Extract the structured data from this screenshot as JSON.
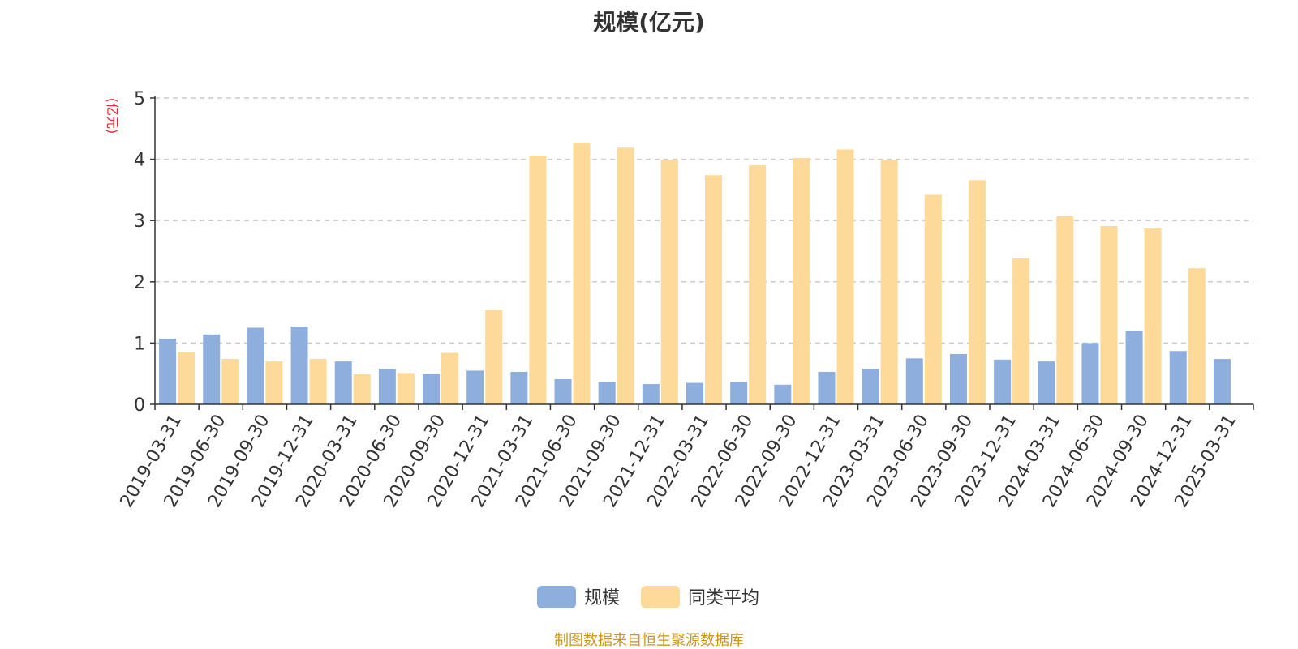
{
  "chart_data": {
    "type": "bar",
    "title": "规模(亿元)",
    "ylabel": "(亿元)",
    "xlabel": "",
    "ylim": [
      0,
      5
    ],
    "yticks": [
      "0",
      "1",
      "2",
      "3",
      "4",
      "5"
    ],
    "grid": true,
    "legend_position": "bottom",
    "categories": [
      "2019-03-31",
      "2019-06-30",
      "2019-09-30",
      "2019-12-31",
      "2020-03-31",
      "2020-06-30",
      "2020-09-30",
      "2020-12-31",
      "2021-03-31",
      "2021-06-30",
      "2021-09-30",
      "2021-12-31",
      "2022-03-31",
      "2022-06-30",
      "2022-09-30",
      "2022-12-31",
      "2023-03-31",
      "2023-06-30",
      "2023-09-30",
      "2023-12-31",
      "2024-03-31",
      "2024-06-30",
      "2024-09-30",
      "2024-12-31",
      "2025-03-31"
    ],
    "series": [
      {
        "name": "规模",
        "color": "#8eaedd",
        "values": [
          1.07,
          1.14,
          1.25,
          1.27,
          0.7,
          0.58,
          0.5,
          0.55,
          0.53,
          0.41,
          0.36,
          0.33,
          0.35,
          0.36,
          0.32,
          0.53,
          0.58,
          0.75,
          0.82,
          0.73,
          0.7,
          1.0,
          1.2,
          0.87,
          0.74
        ]
      },
      {
        "name": "同类平均",
        "color": "#fdd99a",
        "values": [
          0.85,
          0.74,
          0.7,
          0.74,
          0.49,
          0.51,
          0.84,
          1.54,
          4.06,
          4.27,
          4.19,
          3.99,
          3.74,
          3.9,
          4.02,
          4.16,
          3.99,
          3.42,
          3.66,
          2.38,
          3.07,
          2.91,
          2.87,
          2.22,
          null
        ]
      }
    ]
  },
  "source_note": "制图数据来自恒生聚源数据库",
  "colors": {
    "axis": "#333333",
    "grid": "#cccccc",
    "ylabel": "#e8262d",
    "source": "#c8961e"
  }
}
